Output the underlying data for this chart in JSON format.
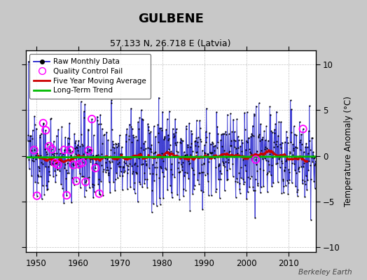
{
  "title": "GULBENE",
  "subtitle": "57.133 N, 26.718 E (Latvia)",
  "ylabel": "Temperature Anomaly (°C)",
  "watermark": "Berkeley Earth",
  "xlim": [
    1947.5,
    2016.5
  ],
  "ylim": [
    -10.5,
    11.5
  ],
  "yticks": [
    -10,
    -5,
    0,
    5,
    10
  ],
  "xticks": [
    1950,
    1960,
    1970,
    1980,
    1990,
    2000,
    2010
  ],
  "fig_bg_color": "#c8c8c8",
  "plot_bg_color": "#ffffff",
  "line_color": "#2222cc",
  "dot_color": "#000000",
  "ma_color": "#cc0000",
  "trend_color": "#00bb00",
  "qc_color": "#ff00ff",
  "grid_color": "#bbbbbb",
  "seed": 137
}
